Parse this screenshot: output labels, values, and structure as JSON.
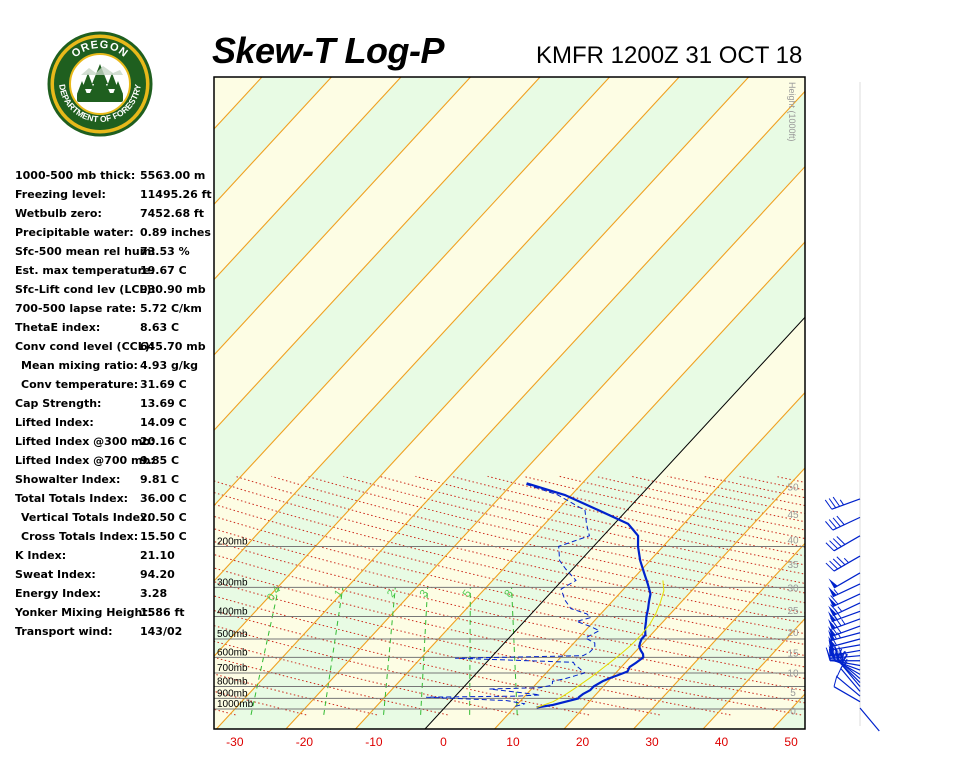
{
  "header": {
    "title": "Skew-T Log-P",
    "station": "KMFR 1200Z 31 OCT 18"
  },
  "logo": {
    "top_text": "OREGON",
    "ring_text": "DEPARTMENT OF FORESTRY",
    "colors": {
      "ring": "#1f5f1f",
      "gold": "#e8b91a",
      "sky": "#ffffff"
    }
  },
  "stats": [
    {
      "label": "1000-500 mb thick:",
      "value": "5563.00 m"
    },
    {
      "label": "Freezing level:",
      "value": "11495.26 ft"
    },
    {
      "label": "Wetbulb zero:",
      "value": "7452.68 ft"
    },
    {
      "label": "Precipitable water:",
      "value": "0.89 inches"
    },
    {
      "label": "Sfc-500 mean rel hum:",
      "value": "73.53 %"
    },
    {
      "label": "Est. max temperature:",
      "value": "19.67 C"
    },
    {
      "label": "Sfc-Lift cond lev (LCL):",
      "value": "930.90 mb"
    },
    {
      "label": "700-500 lapse rate:",
      "value": "5.72 C/km"
    },
    {
      "label": "ThetaE index:",
      "value": "8.63 C"
    },
    {
      "label": "Conv cond level (CCL):",
      "value": "645.70 mb"
    },
    {
      "label": "Mean mixing ratio:",
      "value": "4.93 g/kg",
      "sub": true
    },
    {
      "label": "Conv temperature:",
      "value": "31.69 C",
      "sub": true
    },
    {
      "label": "Cap Strength:",
      "value": "13.69 C"
    },
    {
      "label": "Lifted Index:",
      "value": "14.09 C"
    },
    {
      "label": "Lifted Index @300 mb:",
      "value": "20.16 C"
    },
    {
      "label": "Lifted Index @700 mb:",
      "value": "9.85 C"
    },
    {
      "label": "Showalter Index:",
      "value": "9.81 C"
    },
    {
      "label": "Total Totals Index:",
      "value": "36.00 C"
    },
    {
      "label": "Vertical Totals Index:",
      "value": "20.50 C",
      "sub": true
    },
    {
      "label": "Cross Totals Index:",
      "value": "15.50 C",
      "sub": true
    },
    {
      "label": "K Index:",
      "value": "21.10"
    },
    {
      "label": "Sweat Index:",
      "value": "94.20"
    },
    {
      "label": "Energy Index:",
      "value": "3.28"
    },
    {
      "label": "Yonker Mixing Height:",
      "value": "1586 ft"
    },
    {
      "label": "Transport wind:",
      "value": "143/02"
    }
  ],
  "chart_data": {
    "type": "line",
    "x_ticks": [
      -30,
      -20,
      -10,
      0,
      10,
      20,
      30,
      40,
      50
    ],
    "xlim": [
      -33,
      52
    ],
    "pressure_levels": [
      {
        "label": "200mb",
        "p": 200
      },
      {
        "label": "300mb",
        "p": 300
      },
      {
        "label": "400mb",
        "p": 400
      },
      {
        "label": "500mb",
        "p": 500
      },
      {
        "label": "600mb",
        "p": 600
      },
      {
        "label": "700mb",
        "p": 700
      },
      {
        "label": "800mb",
        "p": 800
      },
      {
        "label": "900mb",
        "p": 900
      },
      {
        "label": "1000mb",
        "p": 1000
      }
    ],
    "height_axis": {
      "label": "Height (1000ft)",
      "ticks": [
        0,
        5,
        10,
        15,
        20,
        25,
        30,
        35,
        40,
        45,
        50
      ]
    },
    "mixing_ratio_labels": [
      "0.4",
      "1",
      "2",
      "3",
      "5",
      "8"
    ],
    "series": [
      {
        "key": "temperature",
        "color": "#0022cc",
        "style": "solid",
        "points": [
          [
            13.2,
            985
          ],
          [
            15.2,
            960
          ],
          [
            18,
            900
          ],
          [
            17.9,
            890
          ],
          [
            18.1,
            860
          ],
          [
            18.6,
            830
          ],
          [
            18.6,
            800
          ],
          [
            19.2,
            760
          ],
          [
            19.9,
            735
          ],
          [
            20.6,
            715
          ],
          [
            21.5,
            690
          ],
          [
            21.2,
            660
          ],
          [
            21.6,
            630
          ],
          [
            21.9,
            600
          ],
          [
            21.4,
            580
          ],
          [
            20.6,
            560
          ],
          [
            19.9,
            540
          ],
          [
            19.5,
            520
          ],
          [
            19.2,
            500
          ],
          [
            19.2,
            480
          ],
          [
            18.3,
            450
          ],
          [
            17.5,
            420
          ],
          [
            16.9,
            400
          ],
          [
            16.1,
            370
          ],
          [
            15.3,
            345
          ],
          [
            14.5,
            320
          ],
          [
            12.8,
            290
          ],
          [
            10.8,
            260
          ],
          [
            8.6,
            230
          ],
          [
            6.4,
            200
          ],
          [
            5,
            180
          ],
          [
            2,
            160
          ],
          [
            -4,
            140
          ],
          [
            -11,
            120
          ],
          [
            -18,
            107
          ]
        ]
      },
      {
        "key": "dewpoint",
        "color": "#0022cc",
        "style": "dashed",
        "points": [
          [
            10,
            975
          ],
          [
            11,
            950
          ],
          [
            8,
            920
          ],
          [
            -4,
            890
          ],
          [
            9,
            880
          ],
          [
            12,
            870
          ],
          [
            4,
            820
          ],
          [
            11,
            810
          ],
          [
            12.5,
            790
          ],
          [
            12,
            760
          ],
          [
            13.5,
            740
          ],
          [
            14.5,
            720
          ],
          [
            15.5,
            700
          ],
          [
            14,
            665
          ],
          [
            13,
            645
          ],
          [
            12.5,
            630
          ],
          [
            -5,
            605
          ],
          [
            13,
            590
          ],
          [
            13.5,
            570
          ],
          [
            13.5,
            540
          ],
          [
            13,
            520
          ],
          [
            11,
            495
          ],
          [
            12,
            460
          ],
          [
            10,
            440
          ],
          [
            7.5,
            420
          ],
          [
            9,
            405
          ],
          [
            8,
            390
          ],
          [
            5,
            370
          ],
          [
            3,
            340
          ],
          [
            1,
            305
          ],
          [
            2,
            280
          ],
          [
            -1,
            250
          ],
          [
            -3,
            230
          ],
          [
            -5,
            200
          ],
          [
            -2,
            180
          ],
          [
            -4,
            160
          ],
          [
            -6,
            140
          ],
          [
            -12,
            120
          ],
          [
            -18,
            108
          ]
        ]
      },
      {
        "key": "parcel",
        "color": "#e6dc00",
        "style": "solid",
        "points": [
          [
            13.2,
            985
          ],
          [
            14.8,
            930
          ],
          [
            15.5,
            880
          ],
          [
            16,
            830
          ],
          [
            16.5,
            780
          ],
          [
            17,
            730
          ],
          [
            17.4,
            680
          ],
          [
            17.8,
            630
          ],
          [
            18.2,
            580
          ],
          [
            18.5,
            530
          ],
          [
            18.6,
            480
          ],
          [
            18.4,
            430
          ],
          [
            17.9,
            390
          ],
          [
            17.1,
            350
          ],
          [
            16,
            310
          ],
          [
            14.5,
            280
          ]
        ]
      }
    ],
    "wind_barbs": [
      {
        "p": 990,
        "dir": 140,
        "spd": 2
      },
      {
        "p": 930,
        "dir": 300,
        "spd": 8
      },
      {
        "p": 880,
        "dir": 310,
        "spd": 10
      },
      {
        "p": 840,
        "dir": 320,
        "spd": 12
      },
      {
        "p": 800,
        "dir": 320,
        "spd": 15
      },
      {
        "p": 770,
        "dir": 315,
        "spd": 18
      },
      {
        "p": 740,
        "dir": 310,
        "spd": 20
      },
      {
        "p": 710,
        "dir": 300,
        "spd": 25
      },
      {
        "p": 680,
        "dir": 290,
        "spd": 30
      },
      {
        "p": 650,
        "dir": 280,
        "spd": 35
      },
      {
        "p": 620,
        "dir": 270,
        "spd": 40
      },
      {
        "p": 590,
        "dir": 265,
        "spd": 45
      },
      {
        "p": 560,
        "dir": 260,
        "spd": 50
      },
      {
        "p": 530,
        "dir": 260,
        "spd": 55
      },
      {
        "p": 500,
        "dir": 255,
        "spd": 60
      },
      {
        "p": 470,
        "dir": 255,
        "spd": 65
      },
      {
        "p": 440,
        "dir": 250,
        "spd": 70
      },
      {
        "p": 410,
        "dir": 250,
        "spd": 75
      },
      {
        "p": 380,
        "dir": 250,
        "spd": 70
      },
      {
        "p": 350,
        "dir": 245,
        "spd": 65
      },
      {
        "p": 320,
        "dir": 245,
        "spd": 60
      },
      {
        "p": 290,
        "dir": 245,
        "spd": 55
      },
      {
        "p": 260,
        "dir": 240,
        "spd": 50
      },
      {
        "p": 220,
        "dir": 240,
        "spd": 45
      },
      {
        "p": 180,
        "dir": 240,
        "spd": 40
      },
      {
        "p": 150,
        "dir": 245,
        "spd": 40
      },
      {
        "p": 125,
        "dir": 250,
        "spd": 35
      }
    ]
  }
}
